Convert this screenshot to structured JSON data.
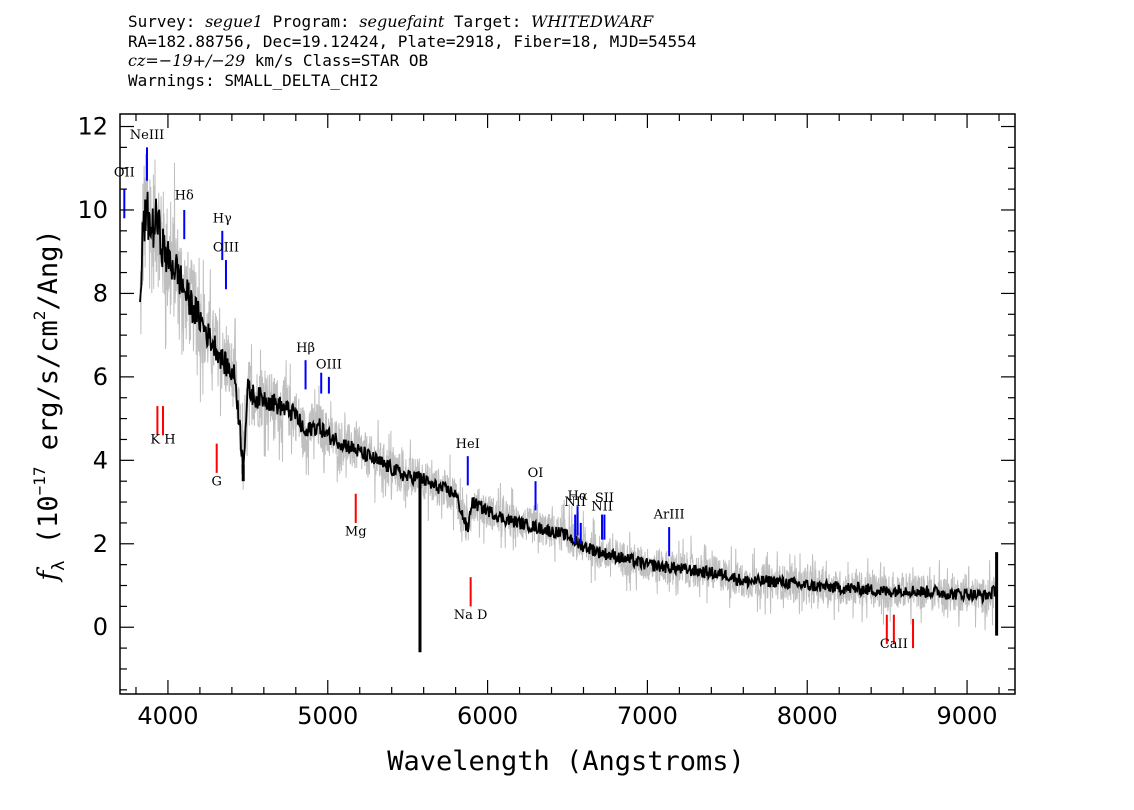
{
  "header": {
    "line1": {
      "survey_label": "Survey: ",
      "survey_value": "segue1",
      "program_label": " Program: ",
      "program_value": "seguefaint",
      "target_label": " Target: ",
      "target_value": "WHITEDWARF"
    },
    "line2": "RA=182.88756, Dec=19.12424, Plate=2918, Fiber=18, MJD=54554",
    "line3": {
      "cz_label": "cz=",
      "cz_value": "−19+/−29",
      "rest": " km/s Class=STAR OB"
    },
    "line4": "Warnings: SMALL_DELTA_CHI2"
  },
  "chart_data": {
    "type": "line",
    "xlabel": "Wavelength (Angstroms)",
    "ylabel_parts": {
      "symbol": "f",
      "subscript": "λ",
      "open": " (10",
      "exp": "−17",
      "mid": " erg/s/cm",
      "exp2": "2",
      "close": "/Ang)"
    },
    "xlim": [
      3700,
      9300
    ],
    "ylim": [
      -1.6,
      12.3
    ],
    "xticks": [
      4000,
      5000,
      6000,
      7000,
      8000,
      9000
    ],
    "yticks": [
      0,
      2,
      4,
      6,
      8,
      10,
      12
    ],
    "x_minor_step": 200,
    "y_minor_step": 0.5,
    "colors": {
      "flux": "#000000",
      "raw": "#bfbfbf",
      "emission": "#0000ff",
      "absorption": "#ff0000"
    },
    "series": [
      {
        "role": "smoothed",
        "x": [
          3825,
          3845,
          3870,
          3900,
          3930,
          3960,
          4000,
          4050,
          4100,
          4150,
          4200,
          4250,
          4300,
          4340,
          4380,
          4420,
          4471,
          4500,
          4550,
          4600,
          4700,
          4800,
          4861,
          4900,
          4950,
          5000,
          5100,
          5200,
          5300,
          5400,
          5500,
          5580,
          5650,
          5700,
          5800,
          5876,
          5900,
          6000,
          6100,
          6200,
          6300,
          6400,
          6500,
          6563,
          6600,
          6700,
          6800,
          6900,
          7000,
          7100,
          7200,
          7300,
          7400,
          7500,
          7600,
          7700,
          7800,
          7900,
          8000,
          8200,
          8400,
          8500,
          8600,
          8700,
          8800,
          8900,
          9000,
          9100,
          9150,
          9185
        ],
        "y": [
          7.5,
          9.6,
          9.9,
          9.5,
          9.8,
          9.2,
          8.8,
          8.6,
          8.1,
          7.7,
          7.4,
          7.0,
          6.7,
          6.4,
          6.2,
          6.0,
          3.9,
          5.7,
          5.5,
          5.5,
          5.3,
          5.1,
          4.6,
          4.8,
          4.8,
          4.6,
          4.4,
          4.2,
          4.0,
          3.8,
          3.6,
          3.6,
          3.4,
          3.35,
          3.2,
          2.3,
          3.0,
          2.8,
          2.6,
          2.5,
          2.4,
          2.3,
          2.2,
          2.0,
          1.95,
          1.8,
          1.7,
          1.6,
          1.5,
          1.45,
          1.4,
          1.35,
          1.3,
          1.25,
          1.1,
          1.1,
          1.1,
          1.05,
          1.0,
          0.95,
          0.9,
          0.85,
          0.9,
          0.85,
          0.85,
          0.8,
          0.8,
          0.75,
          0.8,
          0.9
        ],
        "features": [
          {
            "x": 4471,
            "y_min": 3.5
          },
          {
            "x": 5577,
            "y_min": -0.6
          },
          {
            "x": 9185,
            "y_min": -0.2,
            "y_max": 1.8
          }
        ]
      },
      {
        "role": "raw",
        "noise_scale": [
          {
            "x": 3800,
            "amp": 2.5
          },
          {
            "x": 4300,
            "amp": 1.2
          },
          {
            "x": 5000,
            "amp": 0.8
          },
          {
            "x": 6000,
            "amp": 0.6
          },
          {
            "x": 9200,
            "amp": 0.6
          }
        ]
      }
    ],
    "emission_lines": [
      {
        "label": "OII",
        "x": 3727,
        "y0": 9.8,
        "y1": 10.5,
        "label_y": 10.8
      },
      {
        "label": "NeIII",
        "x": 3869,
        "y0": 10.7,
        "y1": 11.5,
        "label_y": 11.7
      },
      {
        "label": "Hδ",
        "x": 4102,
        "y0": 9.3,
        "y1": 10.0,
        "label_y": 10.25
      },
      {
        "label": "Hγ",
        "x": 4340,
        "y0": 8.8,
        "y1": 9.5,
        "label_y": 9.7
      },
      {
        "label": "OIII",
        "x": 4363,
        "y0": 8.1,
        "y1": 8.8,
        "label_y": 9.0
      },
      {
        "label": "Hβ",
        "x": 4861,
        "y0": 5.7,
        "y1": 6.4,
        "label_y": 6.6
      },
      {
        "label": "",
        "x": 4959,
        "y0": 5.6,
        "y1": 6.1,
        "label_y": 6.1
      },
      {
        "label": "OIII",
        "x": 5007,
        "y0": 5.6,
        "y1": 6.0,
        "label_y": 6.2
      },
      {
        "label": "HeI",
        "x": 5876,
        "y0": 3.4,
        "y1": 4.1,
        "label_y": 4.3
      },
      {
        "label": "OI",
        "x": 6300,
        "y0": 2.8,
        "y1": 3.5,
        "label_y": 3.6
      },
      {
        "label": "NII",
        "x": 6548,
        "y0": 2.0,
        "y1": 2.7,
        "label_y": 2.9
      },
      {
        "label": "Hα",
        "x": 6563,
        "y0": 2.2,
        "y1": 2.9,
        "label_y": 3.05
      },
      {
        "label": "",
        "x": 6583,
        "y0": 2.0,
        "y1": 2.5,
        "label_y": 2.5
      },
      {
        "label": "NII",
        "x": 6716,
        "y0": 2.1,
        "y1": 2.7,
        "label_y": 2.8
      },
      {
        "label": "SII",
        "x": 6731,
        "y0": 2.1,
        "y1": 2.7,
        "label_y": 3.0
      },
      {
        "label": "ArIII",
        "x": 7136,
        "y0": 1.7,
        "y1": 2.4,
        "label_y": 2.6
      }
    ],
    "absorption_lines": [
      {
        "label": "",
        "x": 3934,
        "y0": 4.6,
        "y1": 5.3,
        "label_y": 4.4
      },
      {
        "label": "K H",
        "x": 3969,
        "y0": 4.6,
        "y1": 5.3,
        "label_y": 4.4
      },
      {
        "label": "G",
        "x": 4305,
        "y0": 3.7,
        "y1": 4.4,
        "label_y": 3.4
      },
      {
        "label": "Mg",
        "x": 5175,
        "y0": 2.5,
        "y1": 3.2,
        "label_y": 2.2
      },
      {
        "label": "Na D",
        "x": 5894,
        "y0": 0.5,
        "y1": 1.2,
        "label_y": 0.2
      },
      {
        "label": "",
        "x": 8498,
        "y0": -0.4,
        "y1": 0.3,
        "label_y": -0.4
      },
      {
        "label": "CaII",
        "x": 8542,
        "y0": -0.4,
        "y1": 0.3,
        "label_y": -0.5
      },
      {
        "label": "",
        "x": 8662,
        "y0": -0.5,
        "y1": 0.2,
        "label_y": -0.5
      }
    ]
  }
}
